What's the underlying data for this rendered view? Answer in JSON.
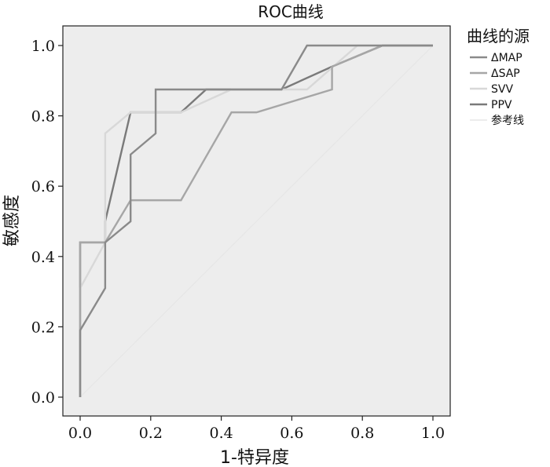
{
  "chart_data": {
    "type": "line",
    "title": "ROC曲线",
    "xlabel": "1-特异度",
    "ylabel": "敏感度",
    "xlim": [
      0,
      1
    ],
    "ylim": [
      0,
      1
    ],
    "x_ticks": [
      "0.0",
      "0.2",
      "0.4",
      "0.6",
      "0.8",
      "1.0"
    ],
    "y_ticks": [
      "0.0",
      "0.2",
      "0.4",
      "0.6",
      "0.8",
      "1.0"
    ],
    "grid": false,
    "plot_background": "#ededed",
    "legend": {
      "title": "曲线的源",
      "position": "right"
    },
    "series": [
      {
        "name": "ΔMAP",
        "color": "#8a8a8a",
        "points": [
          [
            0,
            0
          ],
          [
            0,
            0.19
          ],
          [
            0.071,
            0.31
          ],
          [
            0.071,
            0.44
          ],
          [
            0.143,
            0.5
          ],
          [
            0.143,
            0.69
          ],
          [
            0.214,
            0.75
          ],
          [
            0.214,
            0.875
          ],
          [
            0.571,
            0.875
          ],
          [
            0.643,
            1.0
          ],
          [
            1.0,
            1.0
          ]
        ]
      },
      {
        "name": "ΔSAP",
        "color": "#a6a6a6",
        "points": [
          [
            0,
            0
          ],
          [
            0,
            0.44
          ],
          [
            0.071,
            0.44
          ],
          [
            0.143,
            0.56
          ],
          [
            0.286,
            0.56
          ],
          [
            0.429,
            0.81
          ],
          [
            0.5,
            0.81
          ],
          [
            0.714,
            0.875
          ],
          [
            0.714,
            0.94
          ],
          [
            0.857,
            1.0
          ],
          [
            1.0,
            1.0
          ]
        ]
      },
      {
        "name": "SVV",
        "color": "#d8d8d8",
        "points": [
          [
            0,
            0
          ],
          [
            0,
            0.31
          ],
          [
            0.071,
            0.44
          ],
          [
            0.071,
            0.75
          ],
          [
            0.143,
            0.81
          ],
          [
            0.286,
            0.81
          ],
          [
            0.429,
            0.875
          ],
          [
            0.643,
            0.875
          ],
          [
            0.786,
            1.0
          ],
          [
            1.0,
            1.0
          ]
        ]
      },
      {
        "name": "PPV",
        "color": "#7a7a7a",
        "points": [
          [
            0,
            0
          ],
          [
            0,
            0.44
          ],
          [
            0.071,
            0.44
          ],
          [
            0.071,
            0.5
          ],
          [
            0.143,
            0.81
          ],
          [
            0.286,
            0.81
          ],
          [
            0.357,
            0.875
          ],
          [
            0.571,
            0.875
          ],
          [
            0.714,
            0.94
          ],
          [
            0.857,
            1.0
          ],
          [
            1.0,
            1.0
          ]
        ]
      },
      {
        "name": "参考线",
        "color": "#e6e6e6",
        "points": [
          [
            0,
            0
          ],
          [
            1,
            1
          ]
        ]
      }
    ]
  }
}
